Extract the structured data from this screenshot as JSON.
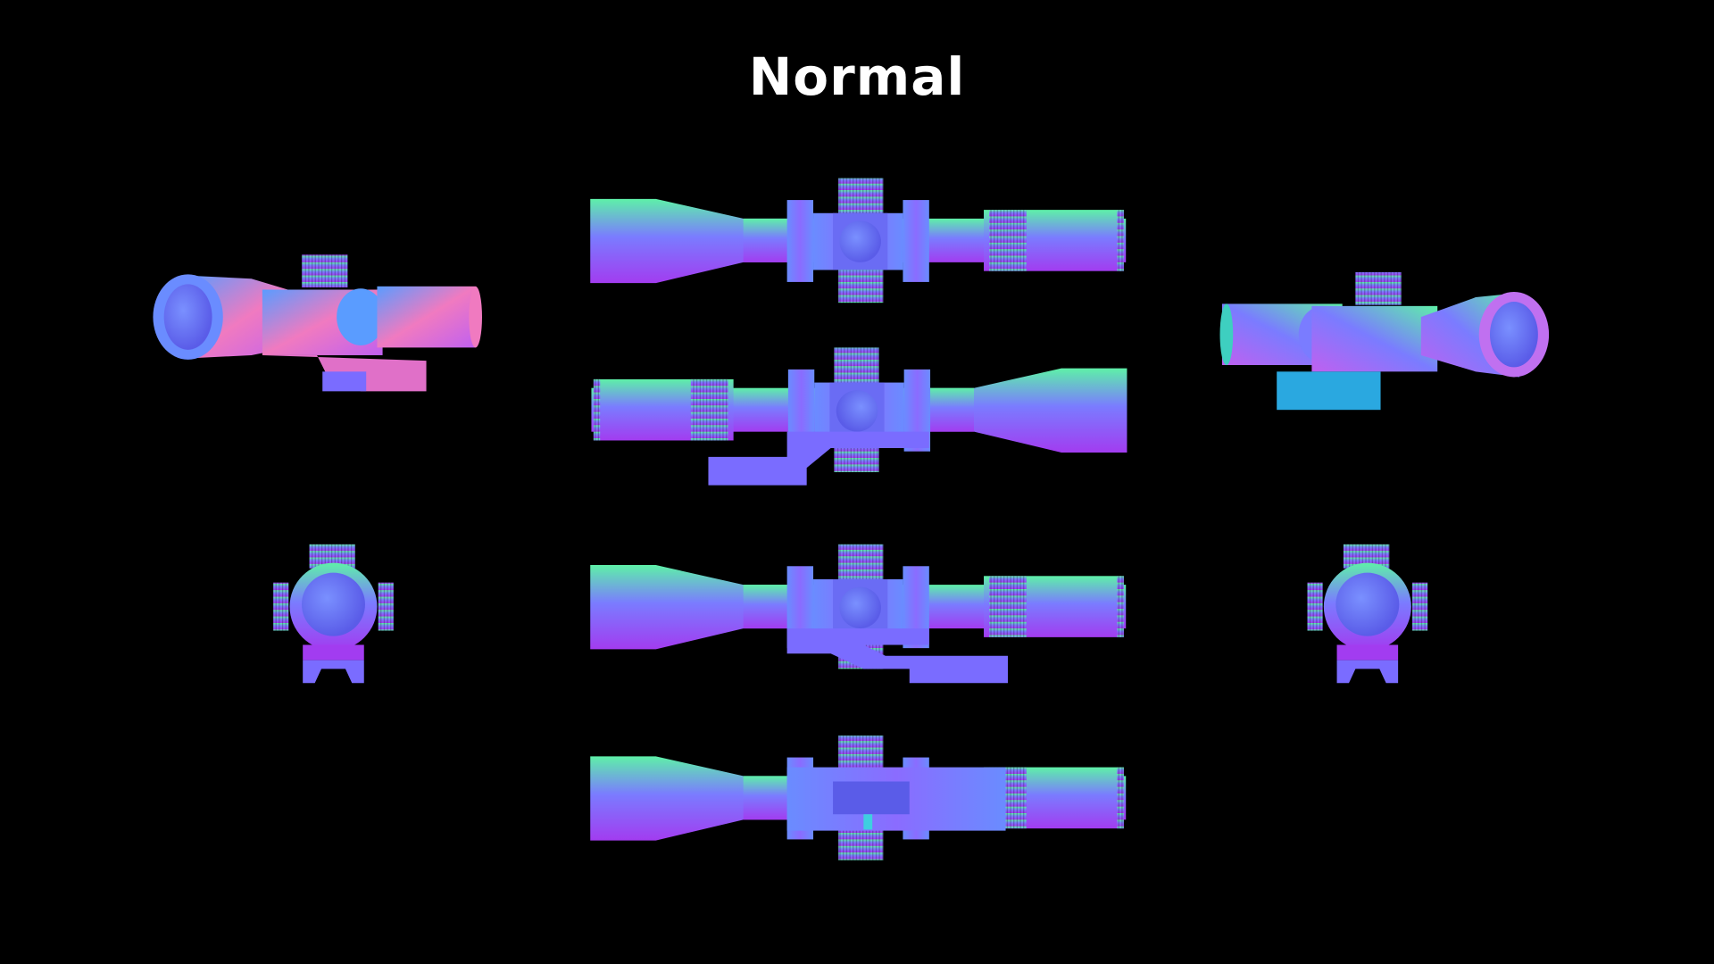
{
  "title": "Normal",
  "colors": {
    "background": "#000000",
    "normal_top": "#5ef0a8",
    "normal_mid": "#7a7cff",
    "normal_bottom": "#a23cf0",
    "normal_pink": "#f07ac0"
  },
  "views": [
    "perspective-left",
    "side-top",
    "side-mount-left",
    "side-mount-right",
    "bottom",
    "perspective-right",
    "front-left",
    "front-right"
  ]
}
